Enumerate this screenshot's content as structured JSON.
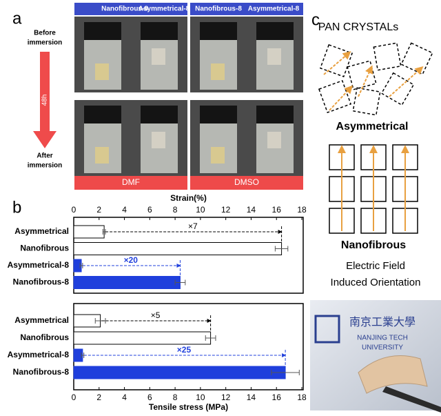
{
  "panels": {
    "a": "a",
    "b": "b",
    "c": "c"
  },
  "photos": {
    "header_left": "Nanofibrous-8",
    "header_right": "Asymmetrical-8",
    "before": [
      "Before",
      "immersion"
    ],
    "time": "48h",
    "after": [
      "After",
      "immersion"
    ],
    "solvent_left": "DMF",
    "solvent_right": "DMSO"
  },
  "schematic": {
    "title": "PAN CRYSTALs",
    "asym": "Asymmetrical",
    "nano": "Nanofibrous",
    "caption": [
      "Electric Field",
      "Induced Orientation"
    ],
    "logo_cn": "南京工業大學",
    "logo_en": [
      "NANJING TECH",
      "UNIVERSITY"
    ]
  },
  "chart_data": [
    {
      "type": "bar",
      "orientation": "horizontal",
      "x_label": "Strain(%)",
      "axis_position": "top",
      "categories": [
        "Asymmetrical",
        "Nanofibrous",
        "Asymmetrical-8",
        "Nanofibrous-8"
      ],
      "values": [
        2.4,
        16.4,
        0.6,
        8.4
      ],
      "errors": [
        0.1,
        0.5,
        0.1,
        0.4
      ],
      "colors": [
        "#ffffff",
        "#ffffff",
        "#1f3fdc",
        "#1f3fdc"
      ],
      "xlim": [
        0,
        18
      ],
      "xticks": [
        0,
        2,
        4,
        6,
        8,
        10,
        12,
        14,
        16,
        18
      ],
      "annotations": [
        "×7",
        "×20"
      ]
    },
    {
      "type": "bar",
      "orientation": "horizontal",
      "x_label": "Tensile stress (MPa)",
      "axis_position": "bottom",
      "categories": [
        "Asymmetrical",
        "Nanofibrous",
        "Asymmetrical-8",
        "Nanofibrous-8"
      ],
      "values": [
        2.1,
        10.8,
        0.7,
        16.7
      ],
      "errors": [
        0.4,
        0.4,
        0.1,
        1.1
      ],
      "colors": [
        "#ffffff",
        "#ffffff",
        "#1f3fdc",
        "#1f3fdc"
      ],
      "xlim": [
        0,
        18
      ],
      "xticks": [
        0,
        2,
        4,
        6,
        8,
        10,
        12,
        14,
        16,
        18
      ],
      "annotations": [
        "×5",
        "×25"
      ]
    }
  ]
}
